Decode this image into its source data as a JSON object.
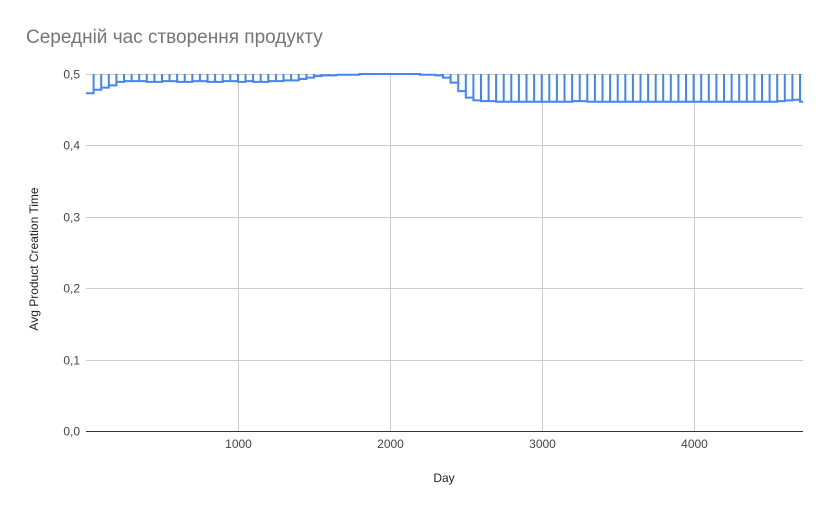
{
  "chart_data": {
    "type": "line",
    "title": "Середній час створення продукту",
    "xlabel": "Day",
    "ylabel": "Avg Product Creation Time",
    "xlim": [
      0,
      4720
    ],
    "ylim": [
      0,
      0.5
    ],
    "x_ticks": [
      {
        "value": 1000,
        "label": "1000"
      },
      {
        "value": 2000,
        "label": "2000"
      },
      {
        "value": 3000,
        "label": "3000"
      },
      {
        "value": 4000,
        "label": "4000"
      }
    ],
    "y_ticks": [
      {
        "value": 0,
        "label": "0,0"
      },
      {
        "value": 0.1,
        "label": "0,1"
      },
      {
        "value": 0.2,
        "label": "0,2"
      },
      {
        "value": 0.3,
        "label": "0,3"
      },
      {
        "value": 0.4,
        "label": "0,4"
      },
      {
        "value": 0.5,
        "label": "0,5"
      }
    ],
    "grid": true,
    "legend": "none",
    "series": [
      {
        "color": "#4285f4",
        "x": [
          0,
          50,
          100,
          150,
          200,
          250,
          300,
          350,
          400,
          450,
          500,
          550,
          600,
          650,
          700,
          750,
          800,
          850,
          900,
          950,
          1000,
          1050,
          1100,
          1150,
          1200,
          1250,
          1300,
          1350,
          1400,
          1450,
          1500,
          1550,
          1600,
          1650,
          1700,
          1750,
          1800,
          1850,
          1900,
          1950,
          2000,
          2050,
          2100,
          2150,
          2200,
          2250,
          2300,
          2350,
          2400,
          2450,
          2500,
          2550,
          2600,
          2650,
          2700,
          2750,
          2800,
          2850,
          2900,
          2950,
          3000,
          3050,
          3100,
          3150,
          3200,
          3250,
          3300,
          3350,
          3400,
          3450,
          3500,
          3550,
          3600,
          3650,
          3700,
          3750,
          3800,
          3850,
          3900,
          3950,
          4000,
          4050,
          4100,
          4150,
          4200,
          4250,
          4300,
          4350,
          4400,
          4450,
          4500,
          4550,
          4600,
          4650,
          4700
        ],
        "y": [
          0.473,
          0.478,
          0.481,
          0.484,
          0.489,
          0.49,
          0.49,
          0.49,
          0.489,
          0.489,
          0.49,
          0.49,
          0.489,
          0.489,
          0.49,
          0.49,
          0.489,
          0.489,
          0.49,
          0.49,
          0.489,
          0.49,
          0.489,
          0.489,
          0.49,
          0.49,
          0.491,
          0.491,
          0.493,
          0.495,
          0.497,
          0.498,
          0.498,
          0.499,
          0.499,
          0.499,
          0.5,
          0.5,
          0.5,
          0.5,
          0.5,
          0.5,
          0.5,
          0.5,
          0.499,
          0.499,
          0.498,
          0.495,
          0.488,
          0.476,
          0.467,
          0.463,
          0.462,
          0.462,
          0.461,
          0.461,
          0.461,
          0.461,
          0.461,
          0.461,
          0.461,
          0.461,
          0.461,
          0.461,
          0.462,
          0.462,
          0.461,
          0.461,
          0.461,
          0.461,
          0.461,
          0.461,
          0.461,
          0.461,
          0.461,
          0.461,
          0.461,
          0.461,
          0.461,
          0.461,
          0.461,
          0.461,
          0.461,
          0.461,
          0.461,
          0.461,
          0.461,
          0.461,
          0.461,
          0.461,
          0.461,
          0.462,
          0.463,
          0.464,
          0.461
        ]
      }
    ]
  }
}
